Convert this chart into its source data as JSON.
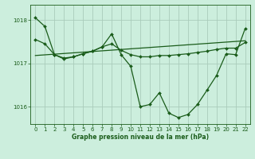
{
  "title": "Graphe pression niveau de la mer (hPa)",
  "bg_color": "#cceedd",
  "grid_color": "#aaccbb",
  "line_color": "#1a5c1a",
  "xlim": [
    -0.5,
    22.5
  ],
  "ylim": [
    1015.6,
    1018.35
  ],
  "yticks": [
    1016,
    1017,
    1018
  ],
  "xticks": [
    0,
    1,
    2,
    3,
    4,
    5,
    6,
    7,
    8,
    9,
    10,
    11,
    12,
    13,
    14,
    15,
    16,
    17,
    18,
    19,
    20,
    21,
    22
  ],
  "series_main_x": [
    0,
    1,
    2,
    3,
    4,
    5,
    6,
    7,
    8,
    9,
    10,
    11,
    12,
    13,
    14,
    15,
    16,
    17,
    18,
    19,
    20,
    21,
    22
  ],
  "series_main_y": [
    1018.05,
    1017.85,
    1017.2,
    1017.1,
    1017.15,
    1017.22,
    1017.28,
    1017.38,
    1017.68,
    1017.2,
    1016.93,
    1016.0,
    1016.05,
    1016.32,
    1015.85,
    1015.75,
    1015.82,
    1016.05,
    1016.38,
    1016.72,
    1017.22,
    1017.2,
    1017.8
  ],
  "series_smooth_x": [
    0,
    1,
    2,
    3,
    4,
    5,
    6,
    7,
    8,
    9,
    10,
    11,
    12,
    13,
    14,
    15,
    16,
    17,
    18,
    19,
    20,
    21,
    22
  ],
  "series_smooth_y": [
    1017.55,
    1017.45,
    1017.2,
    1017.12,
    1017.15,
    1017.22,
    1017.28,
    1017.38,
    1017.45,
    1017.3,
    1017.2,
    1017.15,
    1017.15,
    1017.18,
    1017.18,
    1017.2,
    1017.22,
    1017.25,
    1017.28,
    1017.32,
    1017.35,
    1017.35,
    1017.48
  ],
  "trend_x": [
    0,
    22
  ],
  "trend_y": [
    1017.18,
    1017.52
  ]
}
